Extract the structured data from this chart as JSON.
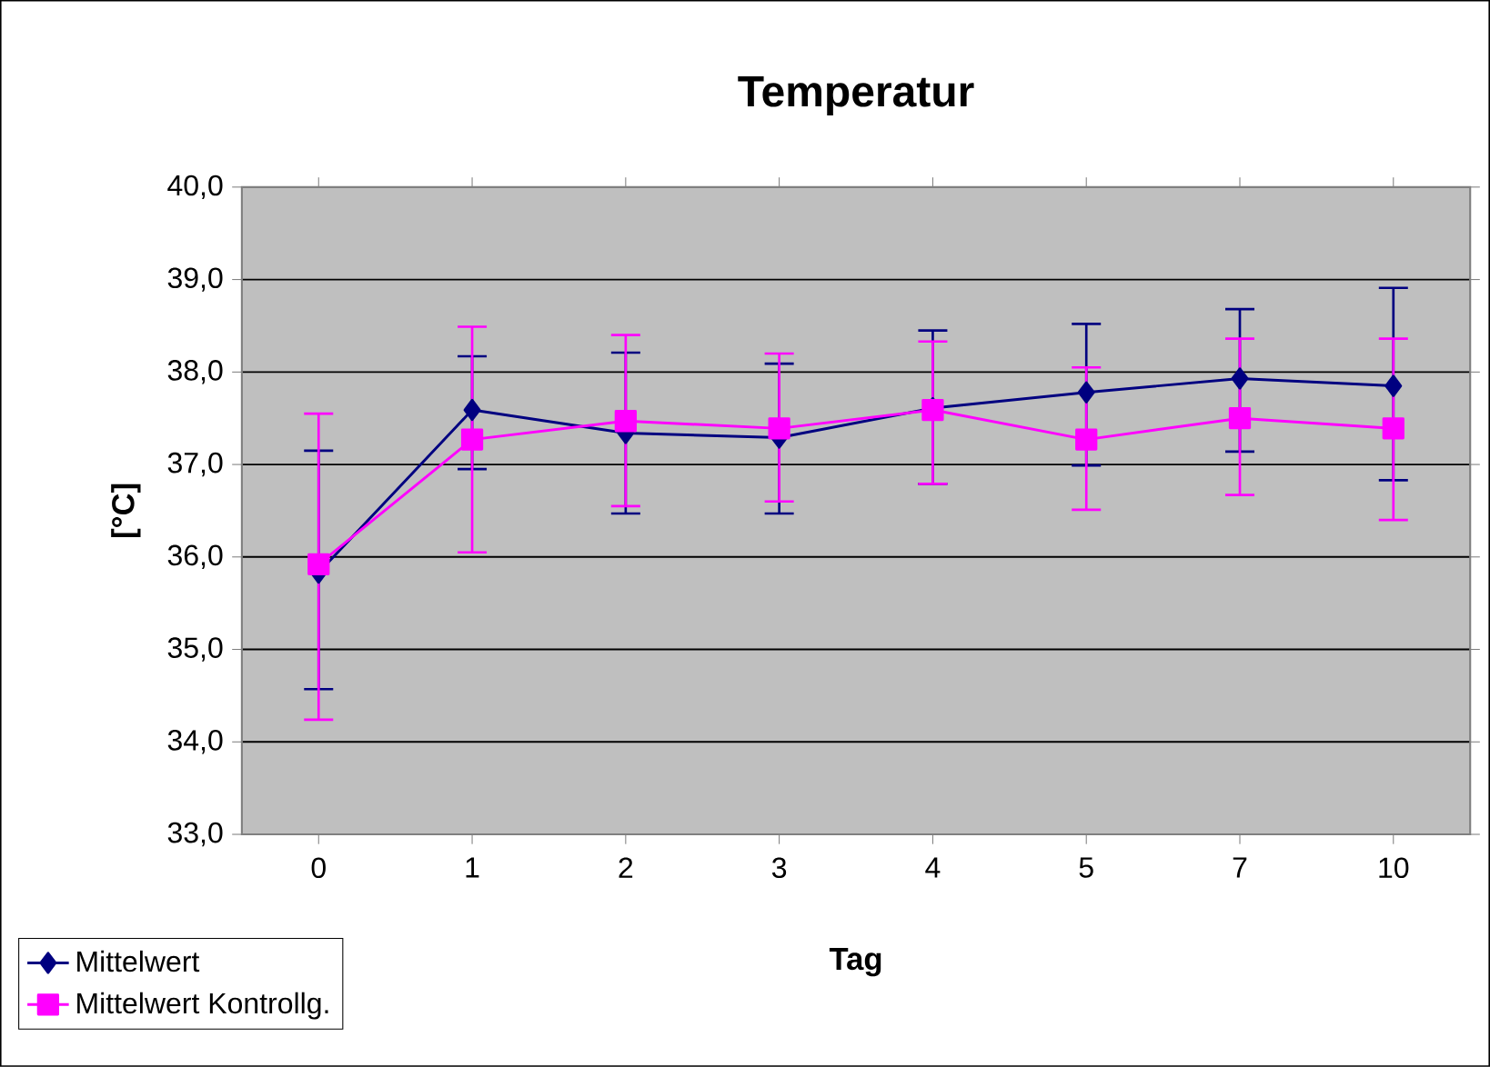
{
  "chart_data": {
    "type": "line",
    "title": "Temperatur",
    "xlabel": "Tag",
    "ylabel": "[°C]",
    "categories": [
      "0",
      "1",
      "2",
      "3",
      "4",
      "5",
      "7",
      "10"
    ],
    "series": [
      {
        "name": "Mittelwert",
        "color": "#000080",
        "marker": "diamond",
        "values": [
          35.83,
          37.59,
          37.34,
          37.29,
          37.61,
          37.78,
          37.93,
          37.85
        ],
        "errors": [
          [
            34.57,
            37.15
          ],
          [
            36.95,
            38.17
          ],
          [
            36.47,
            38.21
          ],
          [
            36.47,
            38.09
          ],
          [
            36.79,
            38.45
          ],
          [
            36.99,
            38.52
          ],
          [
            37.14,
            38.68
          ],
          [
            36.83,
            38.91
          ]
        ]
      },
      {
        "name": "Mittelwert Kontrollg.",
        "color": "#ff00ff",
        "marker": "square",
        "values": [
          35.92,
          37.27,
          37.47,
          37.39,
          37.59,
          37.27,
          37.5,
          37.39
        ],
        "errors": [
          [
            34.24,
            37.55
          ],
          [
            36.05,
            38.49
          ],
          [
            36.55,
            38.4
          ],
          [
            36.6,
            38.2
          ],
          [
            36.79,
            38.33
          ],
          [
            36.51,
            38.05
          ],
          [
            36.67,
            38.36
          ],
          [
            36.4,
            38.36
          ]
        ]
      }
    ],
    "ylim": [
      33,
      40
    ],
    "yticks": [
      {
        "value": 33,
        "label": "33,0"
      },
      {
        "value": 34,
        "label": "34,0"
      },
      {
        "value": 35,
        "label": "35,0"
      },
      {
        "value": 36,
        "label": "36,0"
      },
      {
        "value": 37,
        "label": "37,0"
      },
      {
        "value": 38,
        "label": "38,0"
      },
      {
        "value": 39,
        "label": "39,0"
      },
      {
        "value": 40,
        "label": "40,0"
      }
    ],
    "grid": "y",
    "legend": "bottom left",
    "line_style": "solid"
  }
}
